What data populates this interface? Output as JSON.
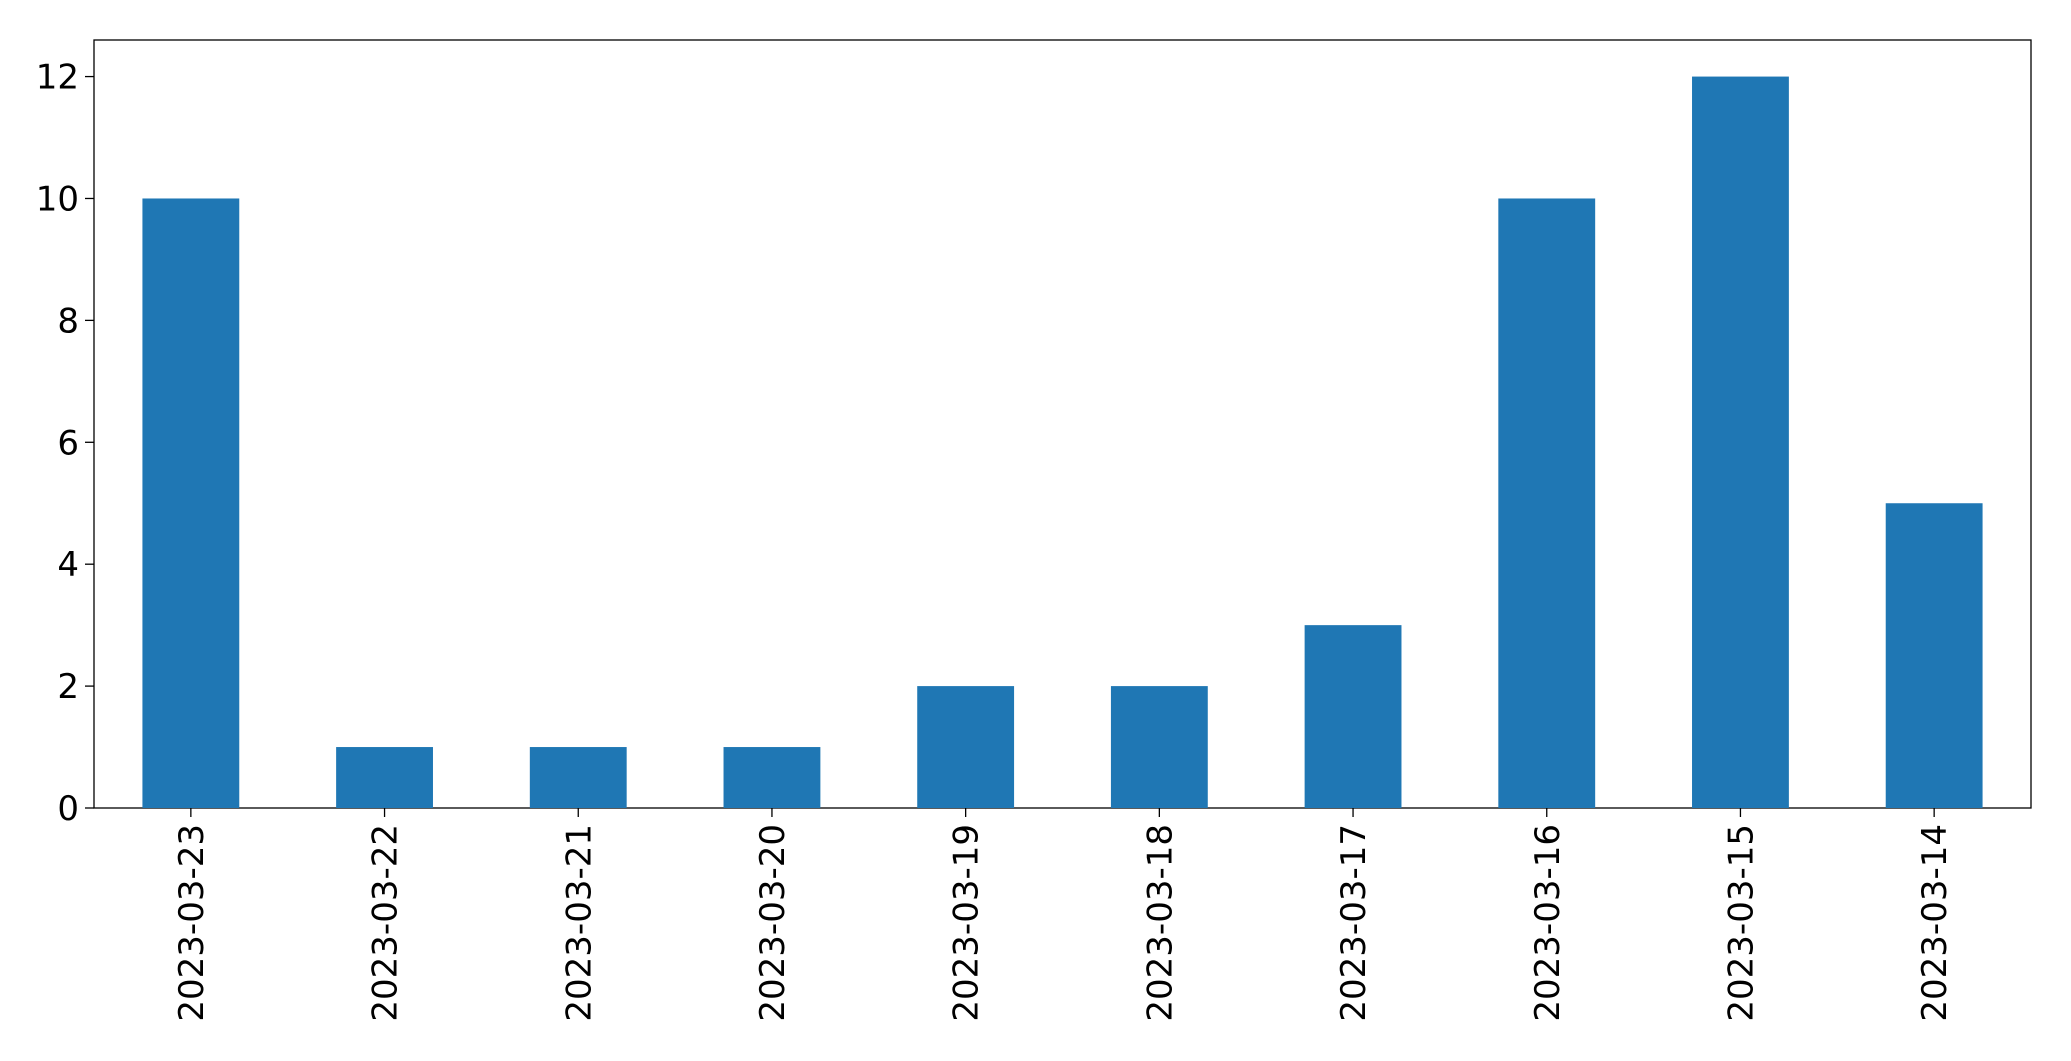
{
  "chart_data": {
    "type": "bar",
    "categories": [
      "2023-03-23",
      "2023-03-22",
      "2023-03-21",
      "2023-03-20",
      "2023-03-19",
      "2023-03-18",
      "2023-03-17",
      "2023-03-16",
      "2023-03-15",
      "2023-03-14"
    ],
    "values": [
      10,
      1,
      1,
      1,
      2,
      2,
      3,
      10,
      12,
      5
    ],
    "color": "#1f77b4",
    "ylim": [
      0,
      12.6
    ],
    "yticks": [
      0,
      2,
      4,
      6,
      8,
      10,
      12
    ],
    "grid": false
  }
}
